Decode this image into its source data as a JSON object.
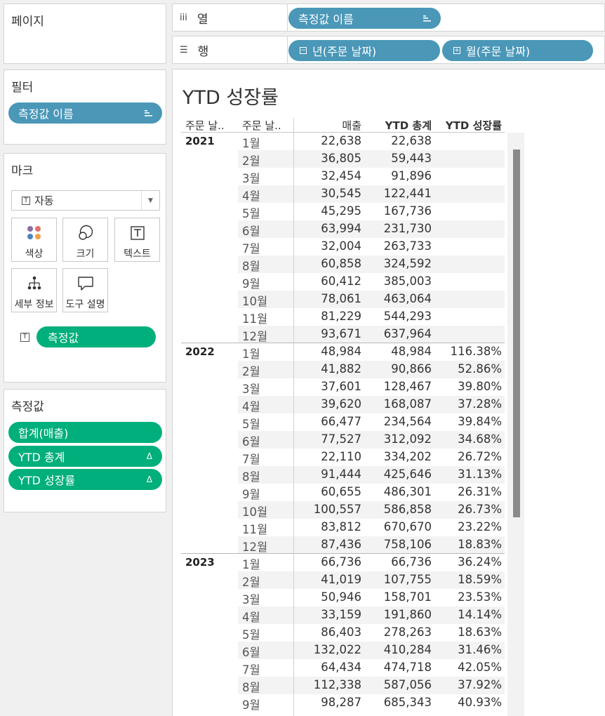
{
  "left": {
    "pages_title": "페이지",
    "filters_title": "필터",
    "filter_pill": "측정값 이름",
    "marks_title": "마크",
    "mark_type": "자동",
    "mark_buttons": [
      "색상",
      "크기",
      "텍스트",
      "세부 정보",
      "도구 설명"
    ],
    "text_pill": "측정값",
    "measures_title": "측정값",
    "measures": [
      "합계(매출)",
      "YTD 총계",
      "YTD 성장률"
    ],
    "delta_glyph": "Δ"
  },
  "shelves": {
    "columns_label": "열",
    "columns_icon": "iii",
    "columns_pill": "측정값 이름",
    "rows_label": "행",
    "rows_icon": "☰",
    "rows_pills": [
      "년(주문 날짜)",
      "월(주문 날짜)"
    ],
    "rows_pill_icons": [
      "−",
      "+"
    ]
  },
  "view": {
    "title": "YTD 성장률",
    "headers": [
      "주문 날..",
      "주문 날..",
      "매출",
      "YTD 총계",
      "YTD 성장률"
    ],
    "groups": [
      {
        "year": "2021",
        "rows": [
          [
            "1월",
            "22,638",
            "22,638",
            ""
          ],
          [
            "2월",
            "36,805",
            "59,443",
            ""
          ],
          [
            "3월",
            "32,454",
            "91,896",
            ""
          ],
          [
            "4월",
            "30,545",
            "122,441",
            ""
          ],
          [
            "5월",
            "45,295",
            "167,736",
            ""
          ],
          [
            "6월",
            "63,994",
            "231,730",
            ""
          ],
          [
            "7월",
            "32,004",
            "263,733",
            ""
          ],
          [
            "8월",
            "60,858",
            "324,592",
            ""
          ],
          [
            "9월",
            "60,412",
            "385,003",
            ""
          ],
          [
            "10월",
            "78,061",
            "463,064",
            ""
          ],
          [
            "11월",
            "81,229",
            "544,293",
            ""
          ],
          [
            "12월",
            "93,671",
            "637,964",
            ""
          ]
        ]
      },
      {
        "year": "2022",
        "rows": [
          [
            "1월",
            "48,984",
            "48,984",
            "116.38%"
          ],
          [
            "2월",
            "41,882",
            "90,866",
            "52.86%"
          ],
          [
            "3월",
            "37,601",
            "128,467",
            "39.80%"
          ],
          [
            "4월",
            "39,620",
            "168,087",
            "37.28%"
          ],
          [
            "5월",
            "66,477",
            "234,564",
            "39.84%"
          ],
          [
            "6월",
            "77,527",
            "312,092",
            "34.68%"
          ],
          [
            "7월",
            "22,110",
            "334,202",
            "26.72%"
          ],
          [
            "8월",
            "91,444",
            "425,646",
            "31.13%"
          ],
          [
            "9월",
            "60,655",
            "486,301",
            "26.31%"
          ],
          [
            "10월",
            "100,557",
            "586,858",
            "26.73%"
          ],
          [
            "11월",
            "83,812",
            "670,670",
            "23.22%"
          ],
          [
            "12월",
            "87,436",
            "758,106",
            "18.83%"
          ]
        ]
      },
      {
        "year": "2023",
        "rows": [
          [
            "1월",
            "66,736",
            "66,736",
            "36.24%"
          ],
          [
            "2월",
            "41,019",
            "107,755",
            "18.59%"
          ],
          [
            "3월",
            "50,946",
            "158,701",
            "23.53%"
          ],
          [
            "4월",
            "33,159",
            "191,860",
            "14.14%"
          ],
          [
            "5월",
            "86,403",
            "278,263",
            "18.63%"
          ],
          [
            "6월",
            "132,022",
            "410,284",
            "31.46%"
          ],
          [
            "7월",
            "64,434",
            "474,718",
            "42.05%"
          ],
          [
            "8월",
            "112,338",
            "587,056",
            "37.92%"
          ],
          [
            "9월",
            "98,287",
            "685,343",
            "40.93%"
          ]
        ]
      }
    ]
  }
}
